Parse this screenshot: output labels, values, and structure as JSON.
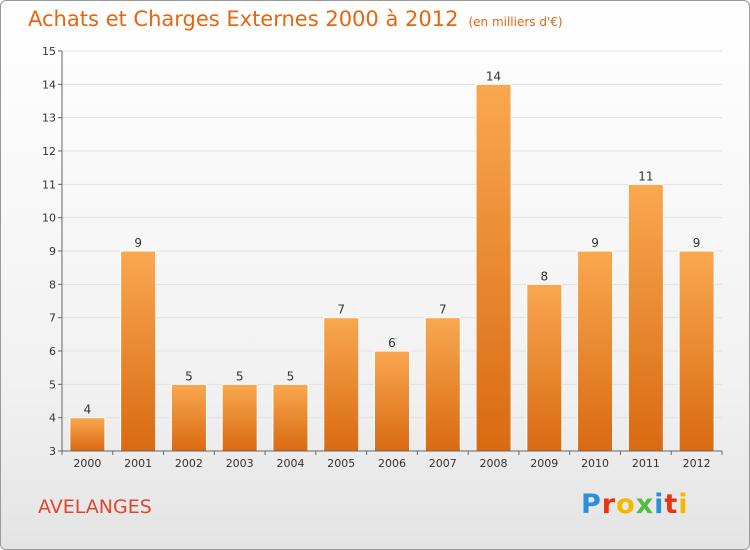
{
  "header": {
    "title": "Achats et Charges Externes 2000 à 2012",
    "subtitle": "(en milliers d'€)"
  },
  "footer": {
    "commune": "AVELANGES",
    "logo_letters": [
      "P",
      "r",
      "o",
      "x",
      "i",
      "t",
      "i"
    ],
    "logo_colors": [
      "#2d8ed9",
      "#e8340f",
      "#f5b800",
      "#57b947",
      "#2d8ed9",
      "#e8340f",
      "#f5b800"
    ]
  },
  "chart_data": {
    "type": "bar",
    "categories": [
      "2000",
      "2001",
      "2002",
      "2003",
      "2004",
      "2005",
      "2006",
      "2007",
      "2008",
      "2009",
      "2010",
      "2011",
      "2012"
    ],
    "values": [
      4,
      9,
      5,
      5,
      5,
      7,
      6,
      7,
      14,
      8,
      9,
      11,
      9
    ],
    "labels": [
      "4",
      "9",
      "5",
      "5",
      "5",
      "7",
      "6",
      "7",
      "14",
      "8",
      "9",
      "11",
      "9"
    ],
    "title": "Achats et Charges Externes 2000 à 2012",
    "xlabel": "",
    "ylabel": "",
    "ylim": [
      3,
      15
    ],
    "yticks": [
      3,
      4,
      5,
      6,
      7,
      8,
      9,
      10,
      11,
      12,
      13,
      14,
      15
    ],
    "bar_color": "#f08a2c",
    "grid": true
  }
}
